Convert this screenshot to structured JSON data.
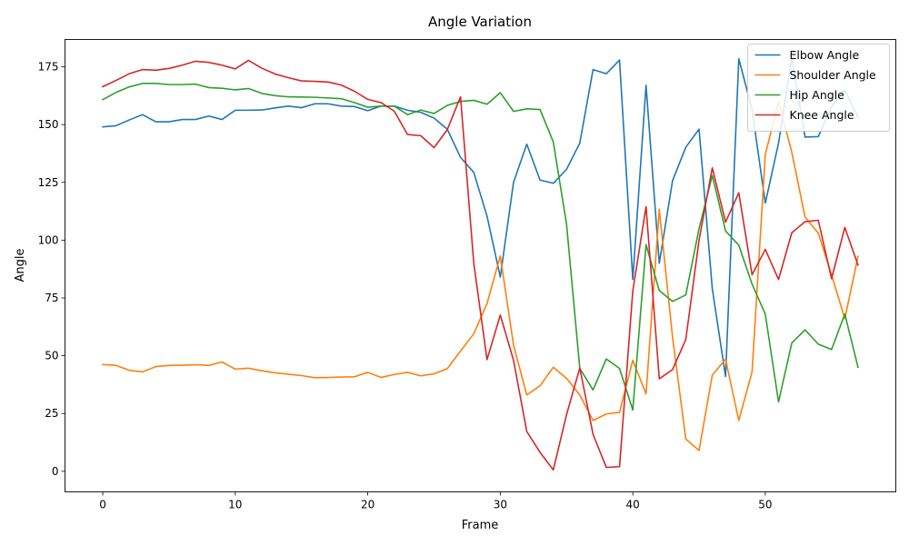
{
  "chart_data": {
    "type": "line",
    "title": "Angle Variation",
    "xlabel": "Frame",
    "ylabel": "Angle",
    "xlim": [
      -2.85,
      59.85
    ],
    "ylim": [
      -8.9,
      186.8
    ],
    "xticks": [
      0,
      10,
      20,
      30,
      40,
      50
    ],
    "yticks": [
      0,
      25,
      50,
      75,
      100,
      125,
      150,
      175
    ],
    "grid": false,
    "legend_position": "top-right",
    "x": [
      0,
      1,
      2,
      3,
      4,
      5,
      6,
      7,
      8,
      9,
      10,
      11,
      12,
      13,
      14,
      15,
      16,
      17,
      18,
      19,
      20,
      21,
      22,
      23,
      24,
      25,
      26,
      27,
      28,
      29,
      30,
      31,
      32,
      33,
      34,
      35,
      36,
      37,
      38,
      39,
      40,
      41,
      42,
      43,
      44,
      45,
      46,
      47,
      48,
      49,
      50,
      51,
      52,
      53,
      54,
      55,
      56,
      57
    ],
    "series": [
      {
        "name": "Elbow Angle",
        "color": "#1f77b4",
        "values": [
          149,
          149.5,
          152,
          154.3,
          151.2,
          151.2,
          152.2,
          152.2,
          153.7,
          152.2,
          156.2,
          156.2,
          156.3,
          157.2,
          158,
          157.3,
          159,
          159,
          158,
          157.8,
          156,
          158,
          158,
          156.2,
          155.3,
          152.8,
          148,
          135.8,
          129.3,
          110.4,
          84,
          125,
          141.5,
          126,
          124.6,
          130.6,
          142,
          173.8,
          172,
          177.9,
          83,
          167,
          90,
          125.7,
          140.2,
          148,
          79,
          41,
          178.5,
          156.5,
          116,
          142,
          179,
          144.6,
          144.8,
          157.8,
          165,
          153
        ]
      },
      {
        "name": "Shoulder Angle",
        "color": "#ff7f0e",
        "values": [
          46.2,
          45.8,
          43.7,
          43,
          45.3,
          45.8,
          45.9,
          46.1,
          45.8,
          47.3,
          44.2,
          44.6,
          43.5,
          42.6,
          42,
          41.4,
          40.5,
          40.6,
          40.8,
          40.9,
          42.8,
          40.6,
          41.9,
          42.8,
          41.3,
          42.2,
          44.4,
          52,
          59.5,
          72.6,
          93.2,
          54.6,
          33,
          37,
          45,
          40.2,
          33,
          22,
          24.8,
          25.5,
          48,
          33.5,
          113.3,
          58,
          14,
          9,
          41.6,
          48.5,
          22,
          43,
          137,
          160,
          138,
          110,
          103,
          85,
          66,
          93
        ]
      },
      {
        "name": "Hip Angle",
        "color": "#2ca02c",
        "values": [
          160.8,
          163.9,
          166.3,
          167.8,
          167.8,
          167.3,
          167.3,
          167.5,
          166,
          165.7,
          165,
          165.6,
          163.5,
          162.5,
          162,
          161.9,
          161.8,
          161.5,
          161.2,
          159.5,
          157.5,
          158,
          158,
          154.3,
          156.3,
          154.8,
          158.3,
          160,
          160.5,
          158.8,
          163.8,
          155.7,
          156.8,
          156.5,
          142.5,
          107,
          44.5,
          35.2,
          48.6,
          44.5,
          26.5,
          98,
          78.2,
          73.5,
          76.3,
          105,
          128,
          104,
          97.8,
          81,
          68,
          30,
          55.5,
          61.2,
          55,
          52.7,
          68,
          45
        ]
      },
      {
        "name": "Knee Angle",
        "color": "#d62728",
        "values": [
          166.4,
          169.1,
          172,
          173.8,
          173.5,
          174.3,
          175.7,
          177.4,
          176.9,
          175.7,
          174.1,
          177.8,
          174.4,
          171.9,
          170.3,
          168.9,
          168.7,
          168.4,
          167.1,
          164.4,
          160.9,
          159.5,
          155.8,
          145.7,
          145.2,
          140,
          147.8,
          162,
          90,
          48.3,
          67.6,
          48,
          17.2,
          8.2,
          0.6,
          24.5,
          44.7,
          16,
          1.7,
          2,
          78,
          114.5,
          40,
          44,
          57,
          100,
          131.3,
          107.8,
          120.5,
          85,
          96,
          83,
          103.2,
          108,
          108.6,
          83.3,
          105.5,
          89.2
        ]
      }
    ]
  }
}
